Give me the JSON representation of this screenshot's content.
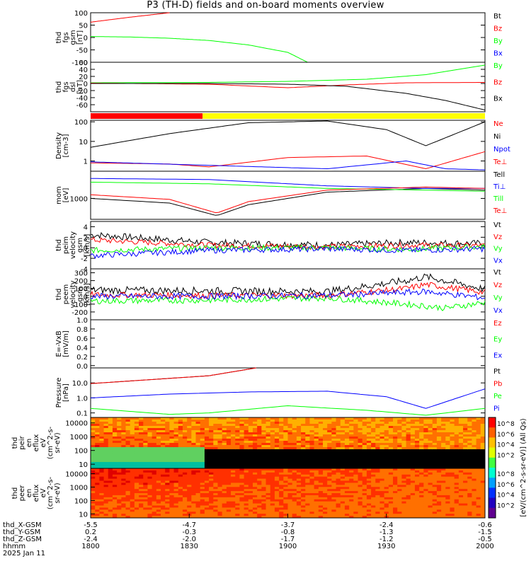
{
  "title": "P3 (TH-D) fields and on-board moments overview",
  "chart_data": {
    "type": "line",
    "time_ticks": [
      "1800",
      "1830",
      "1900",
      "1930",
      "2000"
    ],
    "time_range": [
      "1800",
      "2000"
    ],
    "date": "2025 Jan 11",
    "ephemeris": {
      "labels": [
        "thd_X-GSM",
        "thd_Y-GSM",
        "thd_Z-GSM",
        "hhmm",
        "2025 Jan 11"
      ],
      "X": [
        "-5.5",
        "-4.7",
        "-3.7",
        "-2.4",
        "-0.6"
      ],
      "Y": [
        "0.2",
        "-0.3",
        "-0.8",
        "-1.3",
        "-1.5"
      ],
      "Z": [
        "-2.4",
        "-2.0",
        "-1.7",
        "-1.2",
        "-0.5"
      ]
    },
    "panels": [
      {
        "id": "fgs_gsm",
        "ylabel": [
          "thd",
          "fgs",
          "gsm",
          "[nT]"
        ],
        "ylim": [
          -100,
          100
        ],
        "yticks": [
          "100",
          "50",
          "0",
          "-50",
          "-100"
        ],
        "series": [
          {
            "name": "Bt",
            "color": "#000000",
            "x": [
              0,
              0.45
            ],
            "y": [
              null,
              null
            ]
          },
          {
            "name": "Bz",
            "color": "#ff0000",
            "x": [
              0,
              0.1,
              0.2
            ],
            "y": [
              62,
              82,
              100
            ]
          },
          {
            "name": "By",
            "color": "#00ff00",
            "x": [
              0,
              0.1,
              0.2,
              0.3,
              0.4,
              0.5,
              0.55
            ],
            "y": [
              4,
              2,
              -3,
              -12,
              -30,
              -60,
              -100
            ]
          },
          {
            "name": "Bx",
            "color": "#0000ff",
            "x": [
              0
            ],
            "y": [
              null
            ]
          }
        ]
      },
      {
        "id": "fgs_dsl",
        "ylabel": [
          "thd",
          "fgs",
          "dsl",
          "[nT]"
        ],
        "ylim": [
          -80,
          60
        ],
        "yticks": [
          "60",
          "40",
          "20",
          "0",
          "-20",
          "-40",
          "-60"
        ],
        "series": [
          {
            "name": "By",
            "color": "#00ff00",
            "x": [
              0,
              0.3,
              0.5,
              0.7,
              0.85,
              1.0
            ],
            "y": [
              2,
              3,
              6,
              12,
              25,
              52
            ]
          },
          {
            "name": "Bz",
            "color": "#ff0000",
            "x": [
              0,
              0.3,
              0.5,
              0.65,
              0.8,
              1.0
            ],
            "y": [
              1,
              -2,
              -12,
              -4,
              2,
              3
            ]
          },
          {
            "name": "Bx",
            "color": "#000000",
            "x": [
              0,
              0.3,
              0.5,
              0.65,
              0.8,
              0.9,
              1.0
            ],
            "y": [
              0,
              0,
              -2,
              -8,
              -28,
              -48,
              -75
            ]
          }
        ]
      },
      {
        "id": "density",
        "ylabel": [
          "Density",
          "[cm-3]"
        ],
        "yscale": "log",
        "ylim": [
          0.3,
          120
        ],
        "yticks": [
          "100",
          "10",
          "1"
        ],
        "series": [
          {
            "name": "Ne",
            "color": "#ff0000",
            "x": [
              0,
              0.2,
              0.3,
              0.5,
              0.7,
              0.85,
              1.0
            ],
            "y": [
              0.8,
              0.7,
              0.5,
              1.5,
              1.8,
              0.4,
              3
            ]
          },
          {
            "name": "Ni",
            "color": "#000000",
            "x": [
              0,
              0.2,
              0.4,
              0.6,
              0.75,
              0.85,
              1.0
            ],
            "y": [
              5,
              25,
              90,
              110,
              40,
              6,
              100
            ]
          },
          {
            "name": "Npot",
            "color": "#0000ff",
            "x": [
              0,
              0.3,
              0.6,
              0.8,
              0.9,
              1.0
            ],
            "y": [
              0.9,
              0.6,
              0.4,
              1.0,
              0.4,
              0.35
            ]
          },
          {
            "name": "Te⊥",
            "color": "#ff0000",
            "x": [
              0
            ],
            "y": [
              null
            ]
          }
        ]
      },
      {
        "id": "temp",
        "ylabel": [
          "mom",
          "[eV]"
        ],
        "yscale": "log",
        "ylim": [
          100,
          20000
        ],
        "yticks": [
          "1000"
        ],
        "series": [
          {
            "name": "Tell",
            "color": "#000000",
            "x": [
              0,
              0.2,
              0.32,
              0.4,
              0.6,
              0.85,
              1.0
            ],
            "y": [
              1000,
              600,
              150,
              500,
              2000,
              3000,
              2500
            ]
          },
          {
            "name": "Ti⊥",
            "color": "#0000ff",
            "x": [
              0,
              0.3,
              0.6,
              0.85,
              1.0
            ],
            "y": [
              9000,
              8000,
              4000,
              3000,
              3000
            ]
          },
          {
            "name": "Till",
            "color": "#00ff00",
            "x": [
              0,
              0.3,
              0.6,
              0.85,
              1.0
            ],
            "y": [
              6000,
              5000,
              3000,
              2500,
              2200
            ]
          },
          {
            "name": "Te⊥",
            "color": "#ff0000",
            "x": [
              0,
              0.2,
              0.32,
              0.4,
              0.6,
              0.85,
              1.0
            ],
            "y": [
              1500,
              900,
              200,
              700,
              2500,
              3500,
              3000
            ]
          }
        ]
      },
      {
        "id": "peim_velocity",
        "ylabel": [
          "thd",
          "peim",
          "velocity",
          "gsm",
          "[km/s]"
        ],
        "ylim": [
          -4,
          5
        ],
        "yticks": [
          "4",
          "2",
          "0",
          "-2",
          "-4"
        ],
        "series": [
          {
            "name": "Vt",
            "color": "#000000",
            "x": [
              0,
              0.3,
              0.6,
              0.8,
              1.0
            ],
            "y": [
              2.5,
              1.0,
              0.5,
              1.0,
              0.8
            ]
          },
          {
            "name": "Vz",
            "color": "#ff0000",
            "x": [
              0,
              0.3,
              0.6,
              0.8,
              1.0
            ],
            "y": [
              1.5,
              0.5,
              0.2,
              0.5,
              0.4
            ]
          },
          {
            "name": "Vy",
            "color": "#00ff00",
            "x": [
              0,
              0.3,
              0.6,
              0.8,
              1.0
            ],
            "y": [
              -0.5,
              0.0,
              0.0,
              -0.3,
              0.2
            ]
          },
          {
            "name": "Vx",
            "color": "#0000ff",
            "x": [
              0,
              0.3,
              0.6,
              0.8,
              1.0
            ],
            "y": [
              -1.5,
              -0.5,
              -0.2,
              -0.5,
              -0.2
            ]
          }
        ]
      },
      {
        "id": "peem_velocity",
        "ylabel": [
          "thd",
          "peem",
          "velocity",
          "gsm",
          "[km/s]"
        ],
        "ylim": [
          -300,
          350
        ],
        "yticks": [
          "300",
          "200",
          "100",
          "0",
          "-100",
          "-200"
        ],
        "series": [
          {
            "name": "Vt",
            "color": "#000000",
            "x": [
              0,
              0.3,
              0.6,
              0.8,
              0.85,
              1.0
            ],
            "y": [
              80,
              70,
              60,
              200,
              250,
              90
            ]
          },
          {
            "name": "Vz",
            "color": "#ff0000",
            "x": [
              0,
              0.3,
              0.6,
              0.8,
              0.85,
              1.0
            ],
            "y": [
              20,
              10,
              10,
              100,
              150,
              50
            ]
          },
          {
            "name": "Vy",
            "color": "#00ff00",
            "x": [
              0,
              0.3,
              0.6,
              0.8,
              0.9,
              1.0
            ],
            "y": [
              -60,
              -50,
              -20,
              -100,
              -150,
              -80
            ]
          },
          {
            "name": "Vx",
            "color": "#0000ff",
            "x": [
              0,
              0.3,
              0.6,
              0.8,
              0.85,
              1.0
            ],
            "y": [
              0,
              0,
              10,
              50,
              60,
              -20
            ]
          }
        ]
      },
      {
        "id": "efield",
        "ylabel": [
          "E=-VxB",
          "[mV/m]"
        ],
        "ylim": [
          -0.05,
          1.0
        ],
        "yticks": [
          "1.0",
          "0.8",
          "0.6",
          "0.4",
          "0.2",
          "0.0"
        ],
        "series": [
          {
            "name": "Ez",
            "color": "#ff0000",
            "x": [],
            "y": []
          },
          {
            "name": "Ey",
            "color": "#00ff00",
            "x": [],
            "y": []
          },
          {
            "name": "Ex",
            "color": "#0000ff",
            "x": [],
            "y": []
          }
        ]
      },
      {
        "id": "pressure",
        "ylabel": [
          "Pressure",
          "[nPa]"
        ],
        "yscale": "log",
        "ylim": [
          0.05,
          100
        ],
        "yticks": [
          "10.0",
          "1.0",
          "0.1"
        ],
        "series": [
          {
            "name": "Pt",
            "color": "#000000",
            "x": [
              0,
              0.3,
              0.42
            ],
            "y": [
              9,
              30,
              100
            ]
          },
          {
            "name": "Pb",
            "color": "#ff0000",
            "x": [
              0,
              0.3,
              0.42
            ],
            "y": [
              9,
              30,
              100
            ]
          },
          {
            "name": "Pe",
            "color": "#00ff00",
            "x": [
              0,
              0.2,
              0.3,
              0.5,
              0.7,
              0.85,
              1.0
            ],
            "y": [
              0.2,
              0.08,
              0.1,
              0.3,
              0.15,
              0.07,
              0.2
            ]
          },
          {
            "name": "Pi",
            "color": "#0000ff",
            "x": [
              0,
              0.2,
              0.4,
              0.6,
              0.75,
              0.85,
              1.0
            ],
            "y": [
              1.0,
              1.8,
              2.5,
              2.8,
              1.2,
              0.2,
              4
            ]
          }
        ]
      }
    ],
    "spectrograms": [
      {
        "id": "peir",
        "ylabel": [
          "thd",
          "peir",
          "en",
          "eflux",
          "eV",
          "(cm^2-s-",
          "sr-eV)"
        ],
        "yscale": "log",
        "yticks": [
          "10000",
          "1000",
          "100",
          "10"
        ],
        "ylim": [
          5,
          25000
        ]
      },
      {
        "id": "peer",
        "ylabel": [
          "thd",
          "peer",
          "en",
          "eflux",
          "eV",
          "(cm^2-s-",
          "sr-eV)"
        ],
        "yscale": "log",
        "yticks": [
          "10000",
          "1000",
          "100",
          "10"
        ],
        "ylim": [
          5,
          25000
        ]
      }
    ],
    "colorbar": {
      "label": "[eV/(cm^2-s-sr-eV)] (All Qs)",
      "ticks": [
        "10^8",
        "10^6",
        "10^4",
        "10^2"
      ]
    },
    "status_bar": {
      "colors": [
        "#ff0000",
        "#ffff00"
      ],
      "split_fraction": 0.284
    }
  }
}
